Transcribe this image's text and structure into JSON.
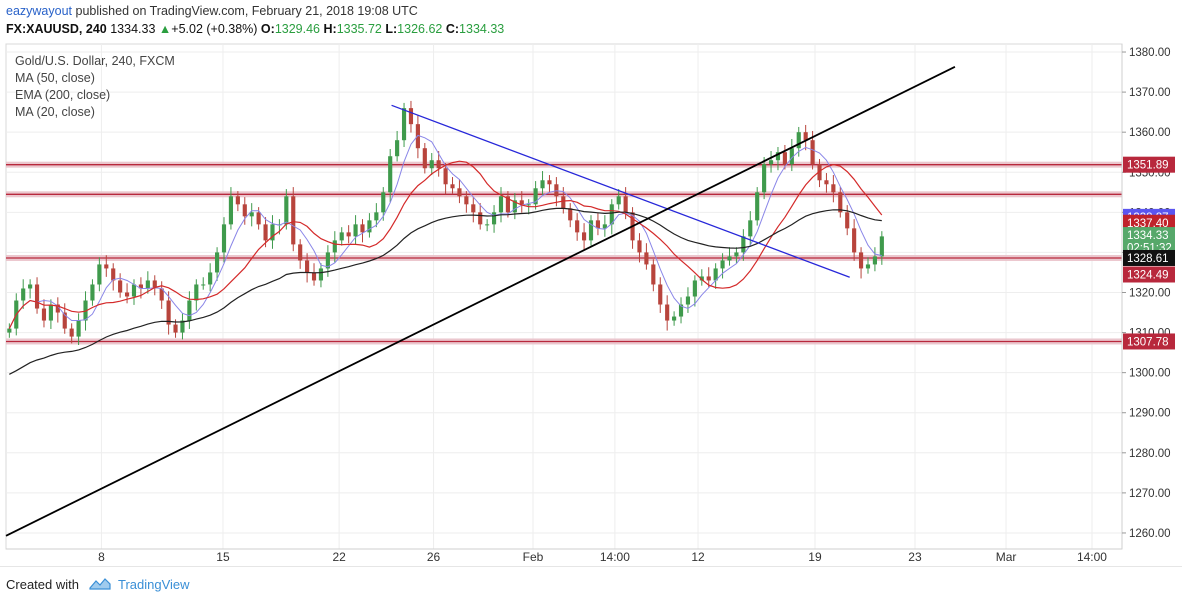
{
  "header": {
    "user": "eazywayout",
    "published_text": "published on TradingView.com, February 21, 2018 19:08 UTC",
    "symbol": "FX:XAUUSD, 240",
    "last": "1334.33",
    "change_arrow": "▲",
    "change": "+5.02 (+0.38%)",
    "open_label": "O:",
    "open": "1329.46",
    "high_label": "H:",
    "high": "1335.72",
    "low_label": "L:",
    "low": "1326.62",
    "close_label": "C:",
    "close": "1334.33"
  },
  "legend": {
    "title": "Gold/U.S. Dollar, 240, FXCM",
    "items": [
      "MA (50, close)",
      "EMA (200, close)",
      "MA (20, close)"
    ]
  },
  "footer": {
    "created_with": "Created with",
    "brand": "TradingView"
  },
  "colors": {
    "up": "#3f9a4c",
    "down": "#b8443c",
    "ma20": "#8a86e8",
    "ma50": "#d42a2a",
    "ema200": "#222222",
    "trend_down": "#2727d9",
    "trend_up": "#000000",
    "level": "#b8283c",
    "level_band": "#e9c1c9"
  },
  "chart_data": {
    "type": "candlestick",
    "y_axis": {
      "ylim": [
        1256,
        1382
      ],
      "ticks": [
        1260,
        1270,
        1280,
        1290,
        1300,
        1310,
        1320,
        1330,
        1340,
        1350,
        1360,
        1370,
        1380
      ],
      "tick_labels": [
        "1260.00",
        "1270.00",
        "1280.00",
        "1290.00",
        "1300.00",
        "1310.00",
        "1320.00",
        "1330.00",
        "1340.00",
        "1350.00",
        "1360.00",
        "1370.00",
        "1380.00"
      ]
    },
    "x_axis": {
      "tick_labels": [
        "8",
        "15",
        "22",
        "26",
        "Feb",
        "14:00",
        "12",
        "19",
        "23",
        "Mar",
        "14:00"
      ]
    },
    "horizontal_levels": [
      1351.89,
      1344.5,
      1328.61,
      1307.78
    ],
    "price_labels": [
      {
        "value": 1351.89,
        "text": "1351.89",
        "bg": "#b8283c",
        "fg": "#ffffff"
      },
      {
        "value": 1338.87,
        "text": "1338.87",
        "bg": "#5b55f0",
        "fg": "#ffffff"
      },
      {
        "value": 1337.4,
        "text": "1337.40",
        "bg": "#c0222b",
        "fg": "#ffffff"
      },
      {
        "value": 1334.33,
        "text": "1334.33",
        "bg": "#56a86a",
        "fg": "#ffffff"
      },
      {
        "value": 1331.2,
        "text": "02:51:32",
        "bg": "#56a86a",
        "fg": "#ffffff"
      },
      {
        "value": 1328.61,
        "text": "1328.61",
        "bg": "#111111",
        "fg": "#ffffff"
      },
      {
        "value": 1324.49,
        "text": "1324.49",
        "bg": "#b8283c",
        "fg": "#ffffff"
      },
      {
        "value": 1307.78,
        "text": "1307.78",
        "bg": "#b8283c",
        "fg": "#ffffff"
      }
    ],
    "trendlines": [
      {
        "name": "descending",
        "from": [
          0.3455,
          1366.7
        ],
        "to": [
          0.756,
          1323.8
        ]
      },
      {
        "name": "ascending",
        "from": [
          0.0,
          1259.3
        ],
        "to": [
          0.8503,
          1376.3
        ]
      }
    ],
    "close_path": [
      1311,
      1318,
      1321,
      1322,
      1316,
      1313,
      1317,
      1315,
      1311,
      1309,
      1313,
      1318,
      1322,
      1327,
      1326,
      1323,
      1320,
      1319,
      1322,
      1321,
      1323,
      1321,
      1318,
      1312,
      1310,
      1313,
      1318,
      1322,
      1322,
      1325,
      1330,
      1337,
      1344,
      1342,
      1339,
      1340,
      1337,
      1333,
      1337,
      1337,
      1344,
      1332,
      1328,
      1325,
      1323,
      1326,
      1330,
      1333,
      1335,
      1334,
      1337,
      1335,
      1338,
      1340,
      1345,
      1354,
      1358,
      1366,
      1362,
      1356,
      1351,
      1353,
      1351,
      1347,
      1346,
      1344,
      1342,
      1340,
      1337,
      1337,
      1340,
      1344,
      1340,
      1343,
      1342,
      1342,
      1346,
      1348,
      1347,
      1344,
      1341,
      1338,
      1335,
      1333,
      1338,
      1336,
      1337,
      1342,
      1344,
      1340,
      1333,
      1330,
      1327,
      1322,
      1317,
      1313,
      1314,
      1317,
      1319,
      1323,
      1324,
      1323,
      1326,
      1328,
      1329,
      1330,
      1334,
      1338,
      1345,
      1352,
      1353,
      1355,
      1352,
      1356,
      1360,
      1358,
      1352,
      1348,
      1347,
      1345,
      1340,
      1336,
      1330,
      1326,
      1327,
      1329,
      1334
    ],
    "series": [
      {
        "name": "MA (50, close)"
      },
      {
        "name": "EMA (200, close)"
      },
      {
        "name": "MA (20, close)"
      }
    ]
  }
}
